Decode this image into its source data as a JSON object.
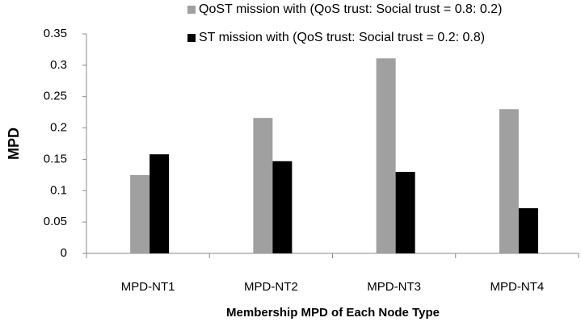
{
  "chart_data": {
    "type": "bar",
    "x_label": "Membership MPD of Each Node Type",
    "y_label": "MPD",
    "categories": [
      "MPD-NT1",
      "MPD-NT2",
      "MPD-NT3",
      "MPD-NT4"
    ],
    "series": [
      {
        "name": "QoST mission with (QoS trust: Social trust = 0.8: 0.2)",
        "color": "#a0a0a0",
        "values": [
          0.125,
          0.216,
          0.311,
          0.23
        ]
      },
      {
        "name": "ST mission with (QoS trust: Social trust = 0.2: 0.8)",
        "color": "#000000",
        "values": [
          0.158,
          0.147,
          0.13,
          0.072
        ]
      }
    ],
    "ylim": [
      0,
      0.35
    ],
    "yticks": [
      0,
      0.05,
      0.1,
      0.15,
      0.2,
      0.25,
      0.3,
      0.35
    ],
    "grid": false
  }
}
